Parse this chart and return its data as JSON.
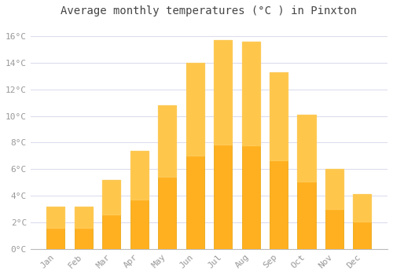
{
  "title": "Average monthly temperatures (°C ) in Pinxton",
  "months": [
    "Jan",
    "Feb",
    "Mar",
    "Apr",
    "May",
    "Jun",
    "Jul",
    "Aug",
    "Sep",
    "Oct",
    "Nov",
    "Dec"
  ],
  "values": [
    3.2,
    3.2,
    5.2,
    7.4,
    10.8,
    14.0,
    15.7,
    15.6,
    13.3,
    10.1,
    6.0,
    4.1
  ],
  "bar_color_top": "#FFD060",
  "bar_color_bottom": "#FFB020",
  "bar_edge_color": "#E8A000",
  "background_color": "#FFFFFF",
  "grid_color": "#DDDDEE",
  "text_color": "#999999",
  "title_color": "#444444",
  "ylim": [
    0,
    17
  ],
  "yticks": [
    0,
    2,
    4,
    6,
    8,
    10,
    12,
    14,
    16
  ],
  "title_fontsize": 10,
  "axis_fontsize": 8,
  "bar_width": 0.65
}
